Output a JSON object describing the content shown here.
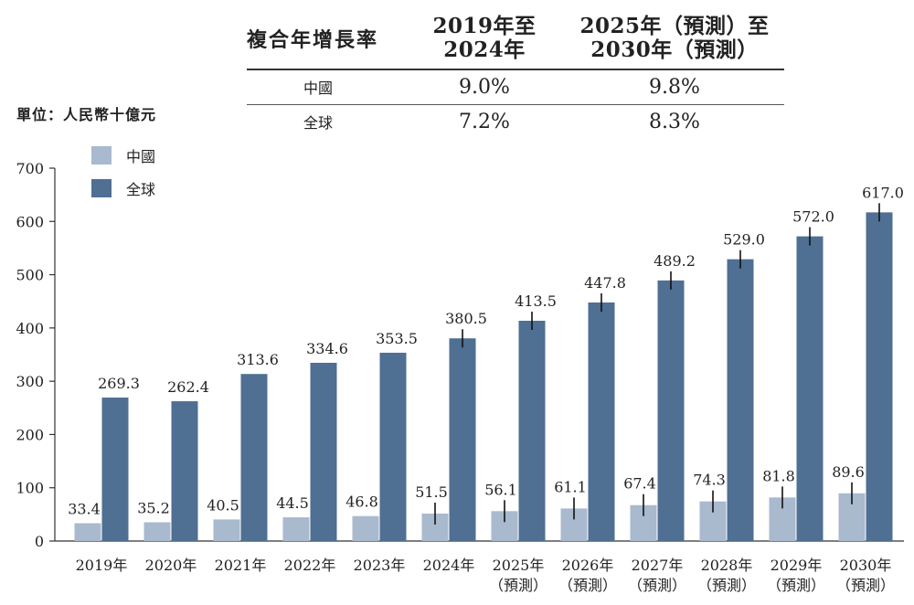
{
  "cagr_table": {
    "title": "複合年增長率",
    "col1": [
      "2019年至",
      "2024年"
    ],
    "col2": [
      "2025年（預測）至",
      "2030年（預測）"
    ],
    "rows": [
      {
        "label": "中國",
        "v1": "9.0%",
        "v2": "9.8%"
      },
      {
        "label": "全球",
        "v1": "7.2%",
        "v2": "8.3%"
      }
    ]
  },
  "unit": "單位：人民幣十億元",
  "chart_data": {
    "type": "bar",
    "title": "",
    "ylabel": "",
    "ylim": [
      0,
      700
    ],
    "yticks": [
      0,
      100,
      200,
      300,
      400,
      500,
      600,
      700
    ],
    "categories": [
      [
        "2019年"
      ],
      [
        "2020年"
      ],
      [
        "2021年"
      ],
      [
        "2022年"
      ],
      [
        "2023年"
      ],
      [
        "2024年"
      ],
      [
        "2025年",
        "（預測）"
      ],
      [
        "2026年",
        "（預測）"
      ],
      [
        "2027年",
        "（預測）"
      ],
      [
        "2028年",
        "（預測）"
      ],
      [
        "2029年",
        "（預測）"
      ],
      [
        "2030年",
        "（預測）"
      ]
    ],
    "series": [
      {
        "name": "中國",
        "color": "#a9b9ce",
        "values": [
          33.4,
          35.2,
          40.5,
          44.5,
          46.8,
          51.5,
          56.1,
          61.1,
          67.4,
          74.3,
          81.8,
          89.6
        ]
      },
      {
        "name": "全球",
        "color": "#4f6f93",
        "values": [
          269.3,
          262.4,
          313.6,
          334.6,
          353.5,
          380.5,
          413.5,
          447.8,
          489.2,
          529.0,
          572.0,
          617.0
        ]
      }
    ],
    "value_labels": {
      "中國": [
        "33.4",
        "35.2",
        "40.5",
        "44.5",
        "46.8",
        "51.5",
        "56.1",
        "61.1",
        "67.4",
        "74.3",
        "81.8",
        "89.6"
      ],
      "全球": [
        "269.3",
        "262.4",
        "313.6",
        "334.6",
        "353.5",
        "380.5",
        "413.5",
        "447.8",
        "489.2",
        "529.0",
        "572.0",
        "617.0"
      ]
    },
    "legend": "top-left",
    "grid": false
  }
}
